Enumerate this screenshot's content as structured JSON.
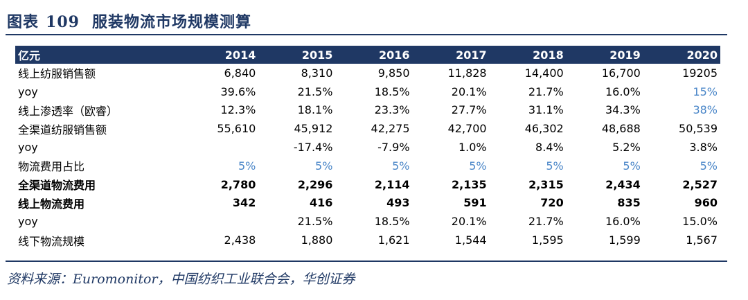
{
  "title": {
    "prefix": "图表",
    "number": "109",
    "text": "服装物流市场规模测算"
  },
  "table": {
    "header_label": "亿元",
    "years": [
      "2014",
      "2015",
      "2016",
      "2017",
      "2018",
      "2019",
      "2020"
    ],
    "rows": [
      {
        "label": "线上纺服销售额",
        "values": [
          "6,840",
          "8,310",
          "9,850",
          "11,828",
          "14,400",
          "16,700",
          "19205"
        ],
        "blue": [],
        "bold": false
      },
      {
        "label": "yoy",
        "values": [
          "39.6%",
          "21.5%",
          "18.5%",
          "20.1%",
          "21.7%",
          "16.0%",
          "15%"
        ],
        "blue": [
          6
        ],
        "bold": false
      },
      {
        "label": "线上渗透率（欧睿）",
        "values": [
          "12.3%",
          "18.1%",
          "23.3%",
          "27.7%",
          "31.1%",
          "34.3%",
          "38%"
        ],
        "blue": [
          6
        ],
        "bold": false
      },
      {
        "label": "全渠道纺服销售额",
        "values": [
          "55,610",
          "45,912",
          "42,275",
          "42,700",
          "46,302",
          "48,688",
          "50,539"
        ],
        "blue": [],
        "bold": false
      },
      {
        "label": "yoy",
        "values": [
          "",
          "-17.4%",
          "-7.9%",
          "1.0%",
          "8.4%",
          "5.2%",
          "3.8%"
        ],
        "blue": [],
        "bold": false
      },
      {
        "label": "物流费用占比",
        "values": [
          "5%",
          "5%",
          "5%",
          "5%",
          "5%",
          "5%",
          "5%"
        ],
        "blue": [
          0,
          1,
          2,
          3,
          4,
          5,
          6
        ],
        "bold": false
      },
      {
        "label": "全渠道物流费用",
        "values": [
          "2,780",
          "2,296",
          "2,114",
          "2,135",
          "2,315",
          "2,434",
          "2,527"
        ],
        "blue": [],
        "bold": true
      },
      {
        "label": "线上物流费用",
        "values": [
          "342",
          "416",
          "493",
          "591",
          "720",
          "835",
          "960"
        ],
        "blue": [],
        "bold": true
      },
      {
        "label": "yoy",
        "values": [
          "",
          "21.5%",
          "18.5%",
          "20.1%",
          "21.7%",
          "16.0%",
          "15.0%"
        ],
        "blue": [],
        "bold": false
      },
      {
        "label": "线下物流规模",
        "values": [
          "2,438",
          "1,880",
          "1,621",
          "1,544",
          "1,595",
          "1,599",
          "1,567"
        ],
        "blue": [],
        "bold": false
      }
    ]
  },
  "source": "资料来源：Euromonitor，中国纺织工业联合会，华创证券",
  "colors": {
    "navy": "#1f3864",
    "blue_value": "#4a86c8"
  }
}
